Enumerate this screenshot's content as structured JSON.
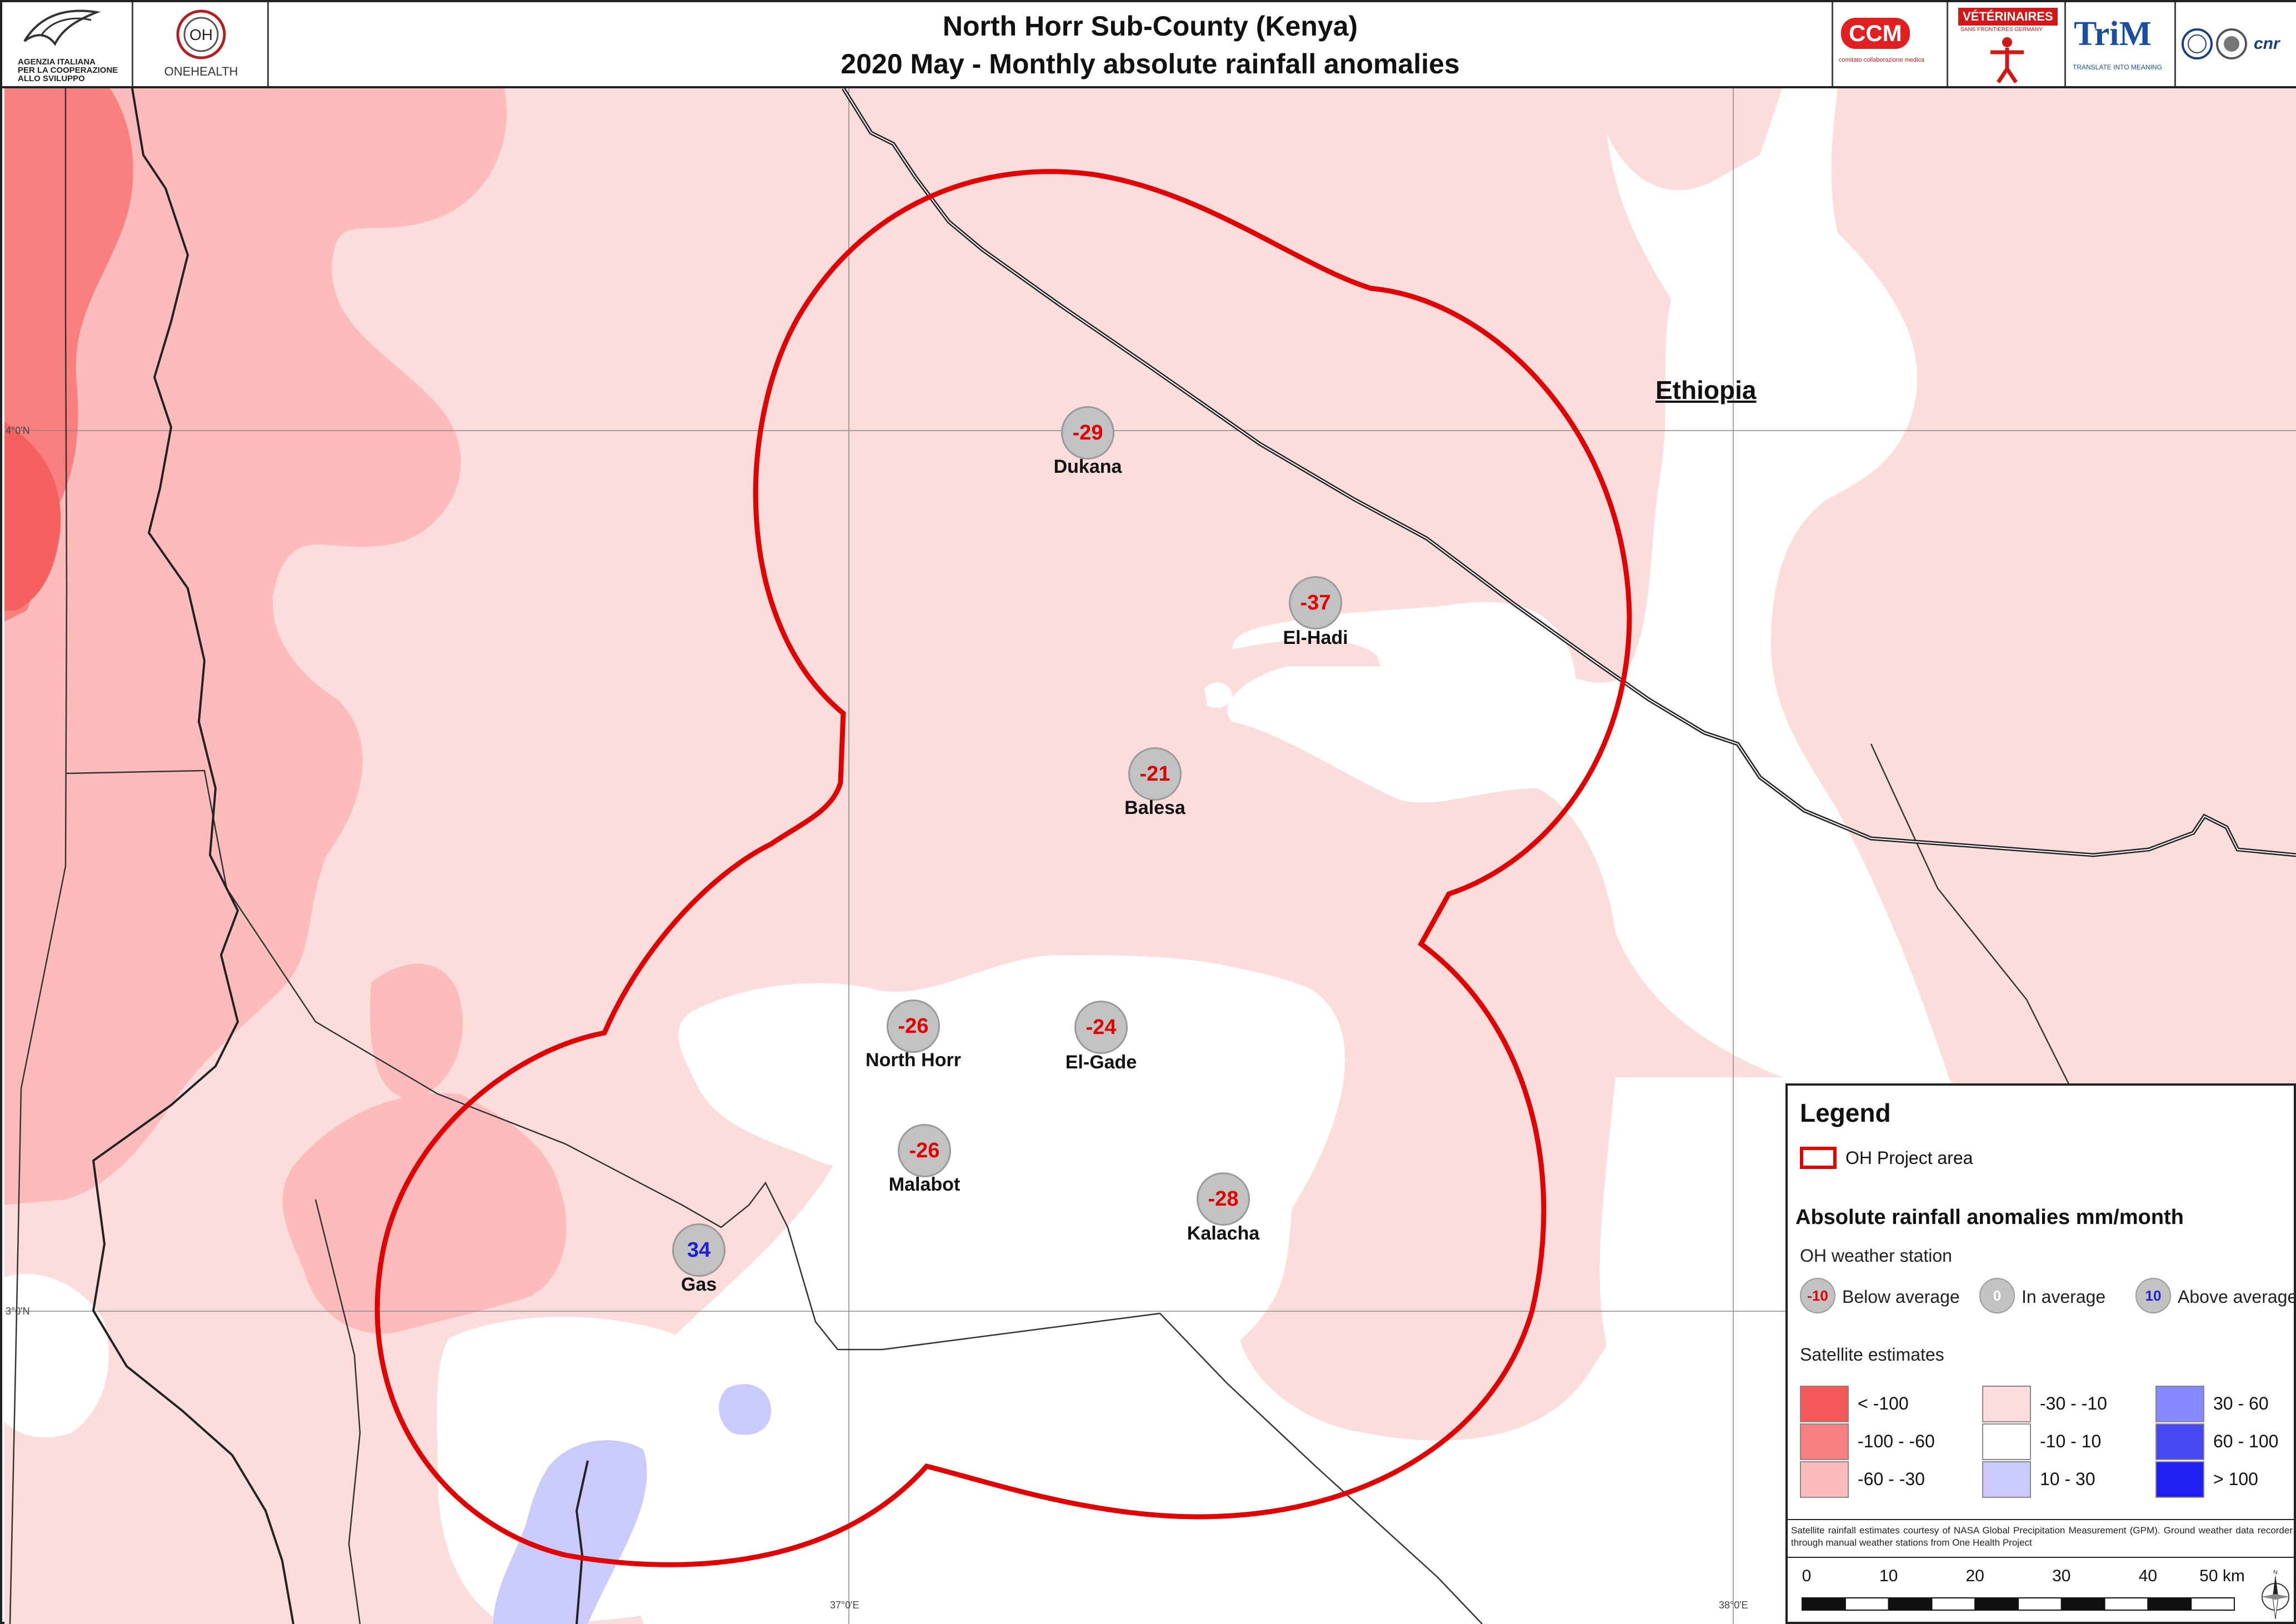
{
  "header": {
    "title_line1": "North Horr Sub-County (Kenya)",
    "title_line2": "2020 May - Monthly absolute rainfall anomalies",
    "logos": {
      "aics": [
        "AGENZIA ITALIANA",
        "PER LA COOPERAZIONE",
        "ALLO SVILUPPO"
      ],
      "onehealth": "ONEHEALTH",
      "ccm": "CCM",
      "ccm_sub": "comitato collaborazione medica",
      "vsf": "VÉTÉRINAIRES",
      "vsf_sub": "SANS FRONTIÈRES GERMANY",
      "trim": "TriM",
      "trim_sub": "TRANSLATE INTO MEANING",
      "cnr": "cnr"
    }
  },
  "map": {
    "coords": {
      "lon1": "37°0'E",
      "lon2": "38°0'E",
      "lat1": "4°0'N",
      "lat2": "3°0'N"
    },
    "country_label": "Ethiopia",
    "stations": [
      {
        "name": "Dukana",
        "value": "-29",
        "status": "below"
      },
      {
        "name": "El-Hadi",
        "value": "-37",
        "status": "below"
      },
      {
        "name": "Balesa",
        "value": "-21",
        "status": "below"
      },
      {
        "name": "North Horr",
        "value": "-26",
        "status": "below"
      },
      {
        "name": "El-Gade",
        "value": "-24",
        "status": "below"
      },
      {
        "name": "Malabot",
        "value": "-26",
        "status": "below"
      },
      {
        "name": "Kalacha",
        "value": "-28",
        "status": "below"
      },
      {
        "name": "Gas",
        "value": "34",
        "status": "above"
      }
    ],
    "colors": {
      "project_outline": "#e00000",
      "below_value_text": "#e00000",
      "above_value_text": "#2020d0"
    }
  },
  "legend": {
    "title": "Legend",
    "project_area": "OH Project area",
    "anomaly_heading": "Absolute rainfall anomalies mm/month",
    "station_heading": "OH weather station",
    "station_types": [
      {
        "value": "-10",
        "label": "Below average"
      },
      {
        "value": "0",
        "label": "In average"
      },
      {
        "value": "10",
        "label": "Above average"
      }
    ],
    "satellite_heading": "Satellite estimates",
    "classes": [
      {
        "label": "< -100",
        "color": "#f55a5a"
      },
      {
        "label": "-100 - -60",
        "color": "#fa8080"
      },
      {
        "label": "-60 - -30",
        "color": "#fcbcbc"
      },
      {
        "label": "-30 - -10",
        "color": "#fddcdc"
      },
      {
        "label": "-10 - 10",
        "color": "#ffffff"
      },
      {
        "label": "10 - 30",
        "color": "#cacaff"
      },
      {
        "label": "30 - 60",
        "color": "#8888ff"
      },
      {
        "label": "60 - 100",
        "color": "#4848f5"
      },
      {
        "label": "> 100",
        "color": "#2020f0"
      }
    ],
    "credit": "Satellite rainfall estimates courtesy of NASA Global Precipitation Measurement (GPM). Ground weather data recorder through manual weather stations from One Health Project",
    "scale": {
      "ticks": [
        "0",
        "10",
        "20",
        "30",
        "40",
        "50 km"
      ]
    }
  }
}
